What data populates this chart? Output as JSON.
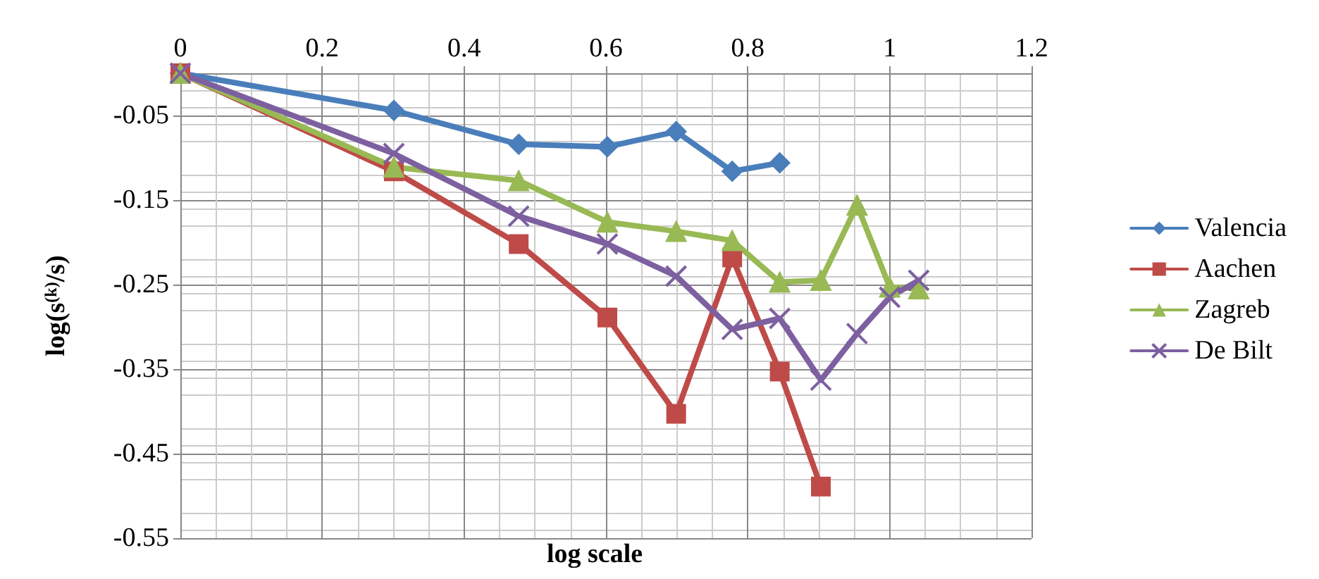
{
  "chart_data": {
    "type": "line",
    "xlabel": "log scale",
    "ylabel": "log(s$^{(k)}$/s)",
    "xlim": [
      0,
      1.2
    ],
    "xticks": [
      0,
      0.2,
      0.4,
      0.6,
      0.8,
      1,
      1.2
    ],
    "ylim": [
      -0.55,
      0
    ],
    "yticks": [
      {
        "value": 0,
        "label": null
      },
      -0.05,
      -0.15,
      -0.25,
      -0.35,
      -0.45,
      -0.55
    ],
    "grid": true,
    "legend": "right",
    "series": [
      {
        "name": "Valencia",
        "color": "#4a7ebb",
        "marker": "diamond",
        "x": [
          0,
          0.301,
          0.477,
          0.602,
          0.699,
          0.778,
          0.845
        ],
        "values": [
          0,
          -0.044,
          -0.084,
          -0.087,
          -0.069,
          -0.116,
          -0.106
        ]
      },
      {
        "name": "Aachen",
        "color": "#be4b48",
        "marker": "square",
        "x": [
          0,
          0.301,
          0.477,
          0.602,
          0.699,
          0.778,
          0.845,
          0.903
        ],
        "values": [
          0,
          -0.116,
          -0.202,
          -0.289,
          -0.403,
          -0.218,
          -0.353,
          -0.489
        ]
      },
      {
        "name": "Zagreb",
        "color": "#98b954",
        "marker": "triangle",
        "x": [
          0,
          0.301,
          0.477,
          0.602,
          0.699,
          0.778,
          0.845,
          0.903,
          0.954,
          1,
          1.041
        ],
        "values": [
          0,
          -0.111,
          -0.127,
          -0.176,
          -0.187,
          -0.198,
          -0.247,
          -0.245,
          -0.156,
          -0.253,
          -0.255
        ]
      },
      {
        "name": "De Bilt",
        "color": "#7d60a0",
        "marker": "cross",
        "x": [
          0,
          0.301,
          0.477,
          0.602,
          0.699,
          0.778,
          0.845,
          0.903,
          0.954,
          1,
          1.041
        ],
        "values": [
          0,
          -0.095,
          -0.169,
          -0.202,
          -0.24,
          -0.303,
          -0.29,
          -0.363,
          -0.308,
          -0.265,
          -0.245
        ]
      }
    ]
  }
}
